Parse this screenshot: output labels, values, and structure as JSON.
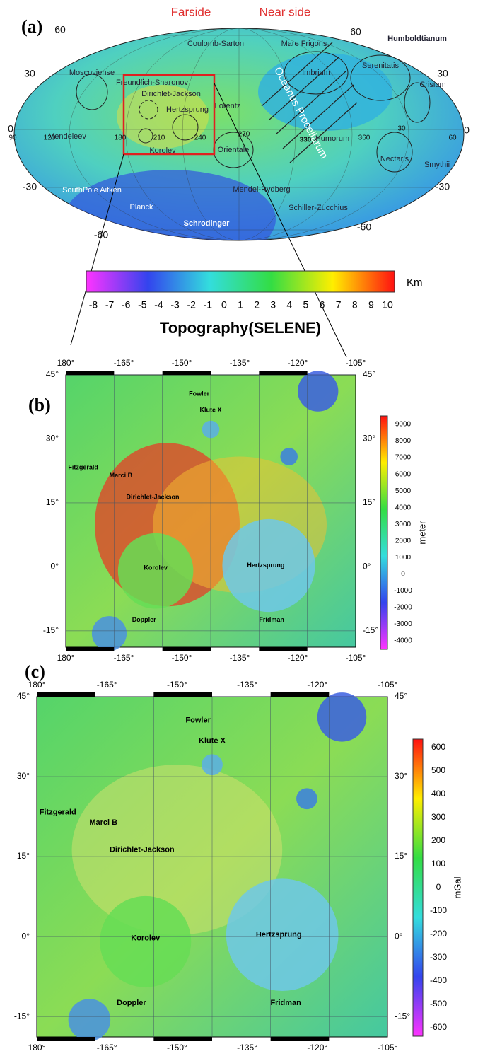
{
  "panel_a": {
    "label": "(a)",
    "header_left": "Farside",
    "header_right": "Near side",
    "features": [
      "Coulomb-Sarton",
      "Mare Frigoris",
      "Humboldtianum",
      "Moscoviense",
      "Freundlich-Sharonov",
      "Dirichlet-Jackson",
      "Imbrium",
      "Serenitatis",
      "Crisium",
      "Hertzsprung",
      "Lorentz",
      "Oceanus Procellarum",
      "Mendeleev",
      "Korolev",
      "Orientale",
      "Humorum",
      "Nectaris",
      "Smythii",
      "SouthPole Aitken",
      "Mendel-Rydberg",
      "Planck",
      "Schrodinger",
      "Schiller-Zucchius"
    ],
    "grid_labels": [
      "60",
      "60",
      "30",
      "30",
      "0",
      "0",
      "-30",
      "-30",
      "-60",
      "-60",
      "90",
      "120",
      "180",
      "210",
      "240",
      "270",
      "330",
      "360",
      "30",
      "60"
    ],
    "colorbar": {
      "ticks": [
        -8,
        -7,
        -6,
        -5,
        -4,
        -3,
        -2,
        -1,
        0,
        1,
        2,
        3,
        4,
        5,
        6,
        7,
        8,
        9,
        10
      ],
      "unit": "Km",
      "title": "Topography(SELENE)"
    }
  },
  "panel_b": {
    "label": "(b)",
    "x_ticks": [
      "180°",
      "-165°",
      "-150°",
      "-135°",
      "-120°",
      "-105°"
    ],
    "y_ticks": [
      "45°",
      "30°",
      "15°",
      "0°",
      "-15°"
    ],
    "craters": [
      "Fowler",
      "Klute X",
      "Fitzgerald",
      "Marci B",
      "Dirichlet-Jackson",
      "Hertzsprung",
      "Korolev",
      "Doppler",
      "Fridman"
    ],
    "colorbar": {
      "ticks": [
        9000,
        8000,
        7000,
        6000,
        5000,
        4000,
        3000,
        2000,
        1000,
        0,
        -1000,
        -2000,
        -3000,
        -4000
      ],
      "unit": "meter"
    }
  },
  "panel_c": {
    "label": "(c)",
    "x_ticks": [
      "180°",
      "-165°",
      "-150°",
      "-135°",
      "-120°",
      "-105°"
    ],
    "y_ticks": [
      "45°",
      "30°",
      "15°",
      "0°",
      "-15°"
    ],
    "craters": [
      "Fowler",
      "Klute X",
      "Fitzgerald",
      "Marci B",
      "Dirichlet-Jackson",
      "Hertzsprung",
      "Korolev",
      "Doppler",
      "Fridman"
    ],
    "colorbar": {
      "ticks": [
        600,
        500,
        400,
        300,
        200,
        100,
        0,
        -100,
        -200,
        -300,
        -400,
        -500,
        -600
      ],
      "unit": "mGal"
    }
  }
}
